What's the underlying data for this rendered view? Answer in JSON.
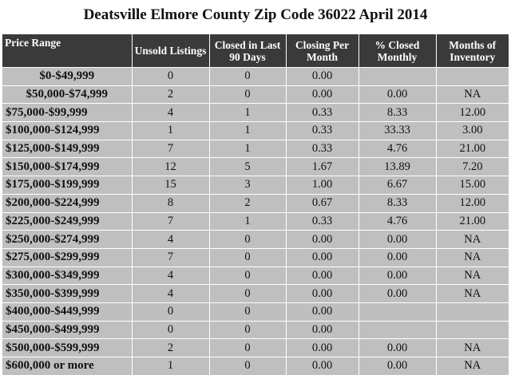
{
  "title": "Deatsville Elmore County Zip Code 36022 April 2014",
  "table": {
    "header": [
      "Price Range",
      "Unsold Listings",
      "Closed in Last 90 Days",
      "Closing Per Month",
      "% Closed Monthly",
      "Months of Inventory"
    ],
    "rows": [
      [
        "$0-$49,999",
        "0",
        "0",
        "0.00",
        null,
        null
      ],
      [
        "$50,000-$74,999",
        "2",
        "0",
        "0.00",
        "0.00",
        "NA"
      ],
      [
        "$75,000-$99,999",
        "4",
        "1",
        "0.33",
        "8.33",
        "12.00"
      ],
      [
        "$100,000-$124,999",
        "1",
        "1",
        "0.33",
        "33.33",
        "3.00"
      ],
      [
        "$125,000-$149,999",
        "7",
        "1",
        "0.33",
        "4.76",
        "21.00"
      ],
      [
        "$150,000-$174,999",
        "12",
        "5",
        "1.67",
        "13.89",
        "7.20"
      ],
      [
        "$175,000-$199,999",
        "15",
        "3",
        "1.00",
        "6.67",
        "15.00"
      ],
      [
        "$200,000-$224,999",
        "8",
        "2",
        "0.67",
        "8.33",
        "12.00"
      ],
      [
        "$225,000-$249,999",
        "7",
        "1",
        "0.33",
        "4.76",
        "21.00"
      ],
      [
        "$250,000-$274,999",
        "4",
        "0",
        "0.00",
        "0.00",
        "NA"
      ],
      [
        "$275,000-$299,999",
        "7",
        "0",
        "0.00",
        "0.00",
        "NA"
      ],
      [
        "$300,000-$349,999",
        "4",
        "0",
        "0.00",
        "0.00",
        "NA"
      ],
      [
        "$350,000-$399,999",
        "4",
        "0",
        "0.00",
        "0.00",
        "NA"
      ],
      [
        "$400,000-$449,999",
        "0",
        "0",
        "0.00",
        null,
        null
      ],
      [
        "$450,000-$499,999",
        "0",
        "0",
        "0.00",
        null,
        null
      ],
      [
        "$500,000-$599,999",
        "2",
        "0",
        "0.00",
        "0.00",
        "NA"
      ],
      [
        "$600,000 or more",
        "1",
        "0",
        "0.00",
        "0.00",
        "NA"
      ]
    ]
  }
}
